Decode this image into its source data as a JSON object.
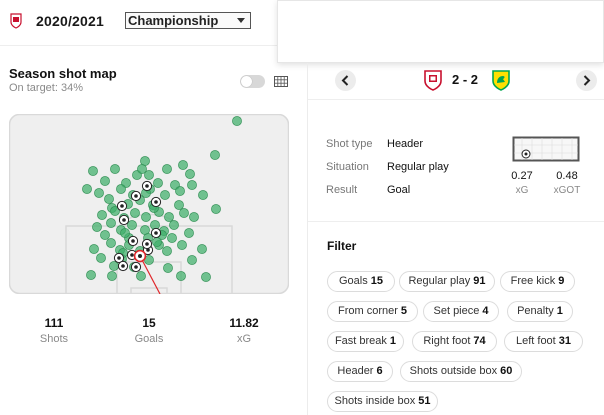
{
  "header": {
    "season": "2020/2021",
    "league": "Championship",
    "team_logo_icon": "barnsley-crest-icon"
  },
  "shot_map": {
    "title": "Season shot map",
    "on_target_label": "On target: 34%",
    "toggle_icon": "toggle-switch-icon",
    "grid_icon": "pitch-grid-icon",
    "colors": {
      "shot": "#3fae6a",
      "shot_edge": "#2f8d52",
      "pitch_bg": "#efefef",
      "pitch_line": "#d9d9d9",
      "shot_path": "#e0262a"
    },
    "stats": [
      {
        "value": "111",
        "label": "Shots"
      },
      {
        "value": "15",
        "label": "Goals"
      },
      {
        "value": "11.82",
        "label": "xG"
      }
    ]
  },
  "match": {
    "prev_icon": "chevron-left-icon",
    "next_icon": "chevron-right-icon",
    "home_crest": "barnsley-crest-icon",
    "away_crest": "norwich-crest-icon",
    "score": "2 - 2"
  },
  "shot_detail": {
    "rows": [
      {
        "key": "Shot type",
        "value": "Header"
      },
      {
        "key": "Situation",
        "value": "Regular play"
      },
      {
        "key": "Result",
        "value": "Goal"
      }
    ],
    "xg": {
      "value": "0.27",
      "label": "xG"
    },
    "xgot": {
      "value": "0.48",
      "label": "xGOT"
    },
    "goal_icon": "goal-frame-icon"
  },
  "filter": {
    "title": "Filter",
    "chips": [
      {
        "label": "Goals",
        "count": "15"
      },
      {
        "label": "Regular play",
        "count": "91"
      },
      {
        "label": "Free kick",
        "count": "9"
      },
      {
        "label": "From corner",
        "count": "5"
      },
      {
        "label": "Set piece",
        "count": "4"
      },
      {
        "label": "Penalty",
        "count": "1"
      },
      {
        "label": "Fast break",
        "count": "1"
      },
      {
        "label": "Right foot",
        "count": "74"
      },
      {
        "label": "Left foot",
        "count": "31"
      },
      {
        "label": "Header",
        "count": "6"
      },
      {
        "label": "Shots outside box",
        "count": "60"
      },
      {
        "label": "Shots inside box",
        "count": "51"
      }
    ]
  }
}
